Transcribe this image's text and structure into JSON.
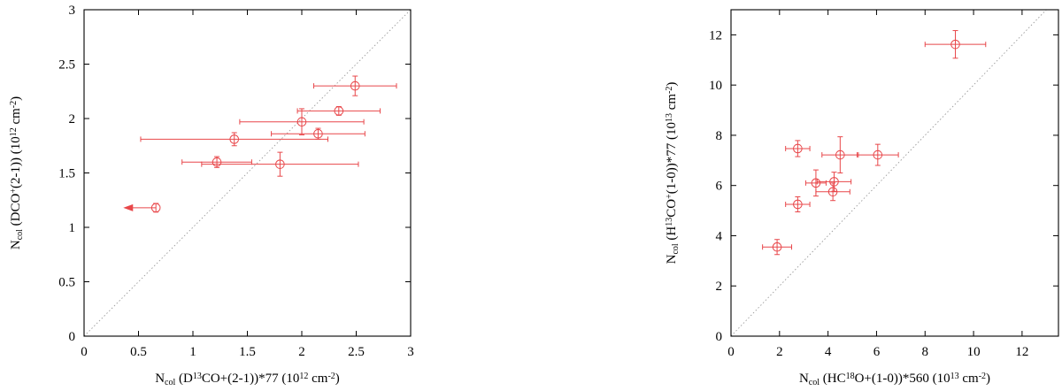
{
  "chart_data": [
    {
      "type": "scatter",
      "xlabel": "N_col (D^13CO+(2-1))*77 (10^12 cm^-2)",
      "ylabel": "N_col (DCO^+(2-1)) (10^12 cm^-2)",
      "xlabel_parts": [
        {
          "t": "N",
          "k": "n"
        },
        {
          "t": "col",
          "k": "sub"
        },
        {
          "t": " (D",
          "k": "n"
        },
        {
          "t": "13",
          "k": "sup"
        },
        {
          "t": "CO+(2-1))*77 (10",
          "k": "n"
        },
        {
          "t": "12",
          "k": "sup"
        },
        {
          "t": " cm",
          "k": "n"
        },
        {
          "t": "-2",
          "k": "sup"
        },
        {
          "t": ")",
          "k": "n"
        }
      ],
      "ylabel_parts": [
        {
          "t": "N",
          "k": "n"
        },
        {
          "t": "col",
          "k": "sub"
        },
        {
          "t": " (DCO",
          "k": "n"
        },
        {
          "t": "+",
          "k": "sup"
        },
        {
          "t": "(2-1)) (10",
          "k": "n"
        },
        {
          "t": "12",
          "k": "sup"
        },
        {
          "t": " cm",
          "k": "n"
        },
        {
          "t": "-2",
          "k": "sup"
        },
        {
          "t": ")",
          "k": "n"
        }
      ],
      "xlim": [
        0,
        3
      ],
      "ylim": [
        0,
        3
      ],
      "xticks": [
        0,
        0.5,
        1,
        1.5,
        2,
        2.5,
        3
      ],
      "yticks": [
        0,
        0.5,
        1,
        1.5,
        2,
        2.5,
        3
      ],
      "xtick_labels": [
        "0",
        "0.5",
        "1",
        "1.5",
        "2",
        "2.5",
        "3"
      ],
      "ytick_labels": [
        "0",
        "0.5",
        "1",
        "1.5",
        "2",
        "2.5",
        "3"
      ],
      "diagonal": true,
      "color": "#e8474a",
      "points": [
        {
          "x": 2.49,
          "y": 2.3,
          "xerr": [
            0.38,
            0.38
          ],
          "yerr": [
            0.09,
            0.09
          ]
        },
        {
          "x": 2.34,
          "y": 2.07,
          "xerr": [
            0.38,
            0.38
          ],
          "yerr": [
            0.04,
            0.04
          ]
        },
        {
          "x": 2.0,
          "y": 1.97,
          "xerr": [
            0.57,
            0.57
          ],
          "yerr": [
            0.12,
            0.12
          ]
        },
        {
          "x": 2.15,
          "y": 1.86,
          "xerr": [
            0.43,
            0.43
          ],
          "yerr": [
            0.05,
            0.05
          ]
        },
        {
          "x": 1.38,
          "y": 1.81,
          "xerr": [
            0.86,
            0.86
          ],
          "yerr": [
            0.06,
            0.06
          ]
        },
        {
          "x": 1.22,
          "y": 1.6,
          "xerr": [
            0.32,
            0.32
          ],
          "yerr": [
            0.05,
            0.05
          ]
        },
        {
          "x": 1.8,
          "y": 1.58,
          "xerr": [
            0.72,
            0.72
          ],
          "yerr": [
            0.11,
            0.11
          ]
        },
        {
          "x": 0.66,
          "y": 1.18,
          "xerr": [
            0.0,
            0.0
          ],
          "yerr": [
            0.04,
            0.04
          ],
          "upper_limit_x": true,
          "arrow_to": 0.36
        }
      ]
    },
    {
      "type": "scatter",
      "xlabel": "N_col (HC^18O+(1-0))*560 (10^13 cm^-2)",
      "ylabel": "N_col (H^13CO^+(1-0))*77 (10^13 cm^-2)",
      "xlabel_parts": [
        {
          "t": "N",
          "k": "n"
        },
        {
          "t": "col",
          "k": "sub"
        },
        {
          "t": " (HC",
          "k": "n"
        },
        {
          "t": "18",
          "k": "sup"
        },
        {
          "t": "O+(1-0))*560 (10",
          "k": "n"
        },
        {
          "t": "13",
          "k": "sup"
        },
        {
          "t": " cm",
          "k": "n"
        },
        {
          "t": "-2",
          "k": "sup"
        },
        {
          "t": ")",
          "k": "n"
        }
      ],
      "ylabel_parts": [
        {
          "t": "N",
          "k": "n"
        },
        {
          "t": "col",
          "k": "sub"
        },
        {
          "t": " (H",
          "k": "n"
        },
        {
          "t": "13",
          "k": "sup"
        },
        {
          "t": "CO",
          "k": "n"
        },
        {
          "t": "+",
          "k": "sup"
        },
        {
          "t": "(1-0))*77 (10",
          "k": "n"
        },
        {
          "t": "13",
          "k": "sup"
        },
        {
          "t": " cm",
          "k": "n"
        },
        {
          "t": "-2",
          "k": "sup"
        },
        {
          "t": ")",
          "k": "n"
        }
      ],
      "xlim": [
        0,
        13.5
      ],
      "ylim": [
        0,
        13
      ],
      "xticks": [
        0,
        2,
        4,
        6,
        8,
        10,
        12
      ],
      "yticks": [
        0,
        2,
        4,
        6,
        8,
        10,
        12
      ],
      "xtick_labels": [
        "0",
        "2",
        "4",
        "6",
        "8",
        "10",
        "12"
      ],
      "ytick_labels": [
        "0",
        "2",
        "4",
        "6",
        "8",
        "10",
        "12"
      ],
      "diagonal": true,
      "color": "#e8474a",
      "points": [
        {
          "x": 9.25,
          "y": 11.62,
          "xerr": [
            1.25,
            1.25
          ],
          "yerr": [
            0.55,
            0.55
          ]
        },
        {
          "x": 2.75,
          "y": 7.47,
          "xerr": [
            0.5,
            0.5
          ],
          "yerr": [
            0.32,
            0.32
          ]
        },
        {
          "x": 4.5,
          "y": 7.22,
          "xerr": [
            0.75,
            0.75
          ],
          "yerr": [
            0.72,
            0.72
          ]
        },
        {
          "x": 6.05,
          "y": 7.22,
          "xerr": [
            0.85,
            0.85
          ],
          "yerr": [
            0.42,
            0.42
          ]
        },
        {
          "x": 3.5,
          "y": 6.1,
          "xerr": [
            0.42,
            0.42
          ],
          "yerr": [
            0.52,
            0.52
          ]
        },
        {
          "x": 4.25,
          "y": 6.15,
          "xerr": [
            0.7,
            0.7
          ],
          "yerr": [
            0.38,
            0.38
          ]
        },
        {
          "x": 4.2,
          "y": 5.75,
          "xerr": [
            0.7,
            0.7
          ],
          "yerr": [
            0.35,
            0.35
          ]
        },
        {
          "x": 2.75,
          "y": 5.25,
          "xerr": [
            0.5,
            0.5
          ],
          "yerr": [
            0.3,
            0.3
          ]
        },
        {
          "x": 1.9,
          "y": 3.55,
          "xerr": [
            0.6,
            0.6
          ],
          "yerr": [
            0.3,
            0.3
          ]
        }
      ]
    }
  ]
}
